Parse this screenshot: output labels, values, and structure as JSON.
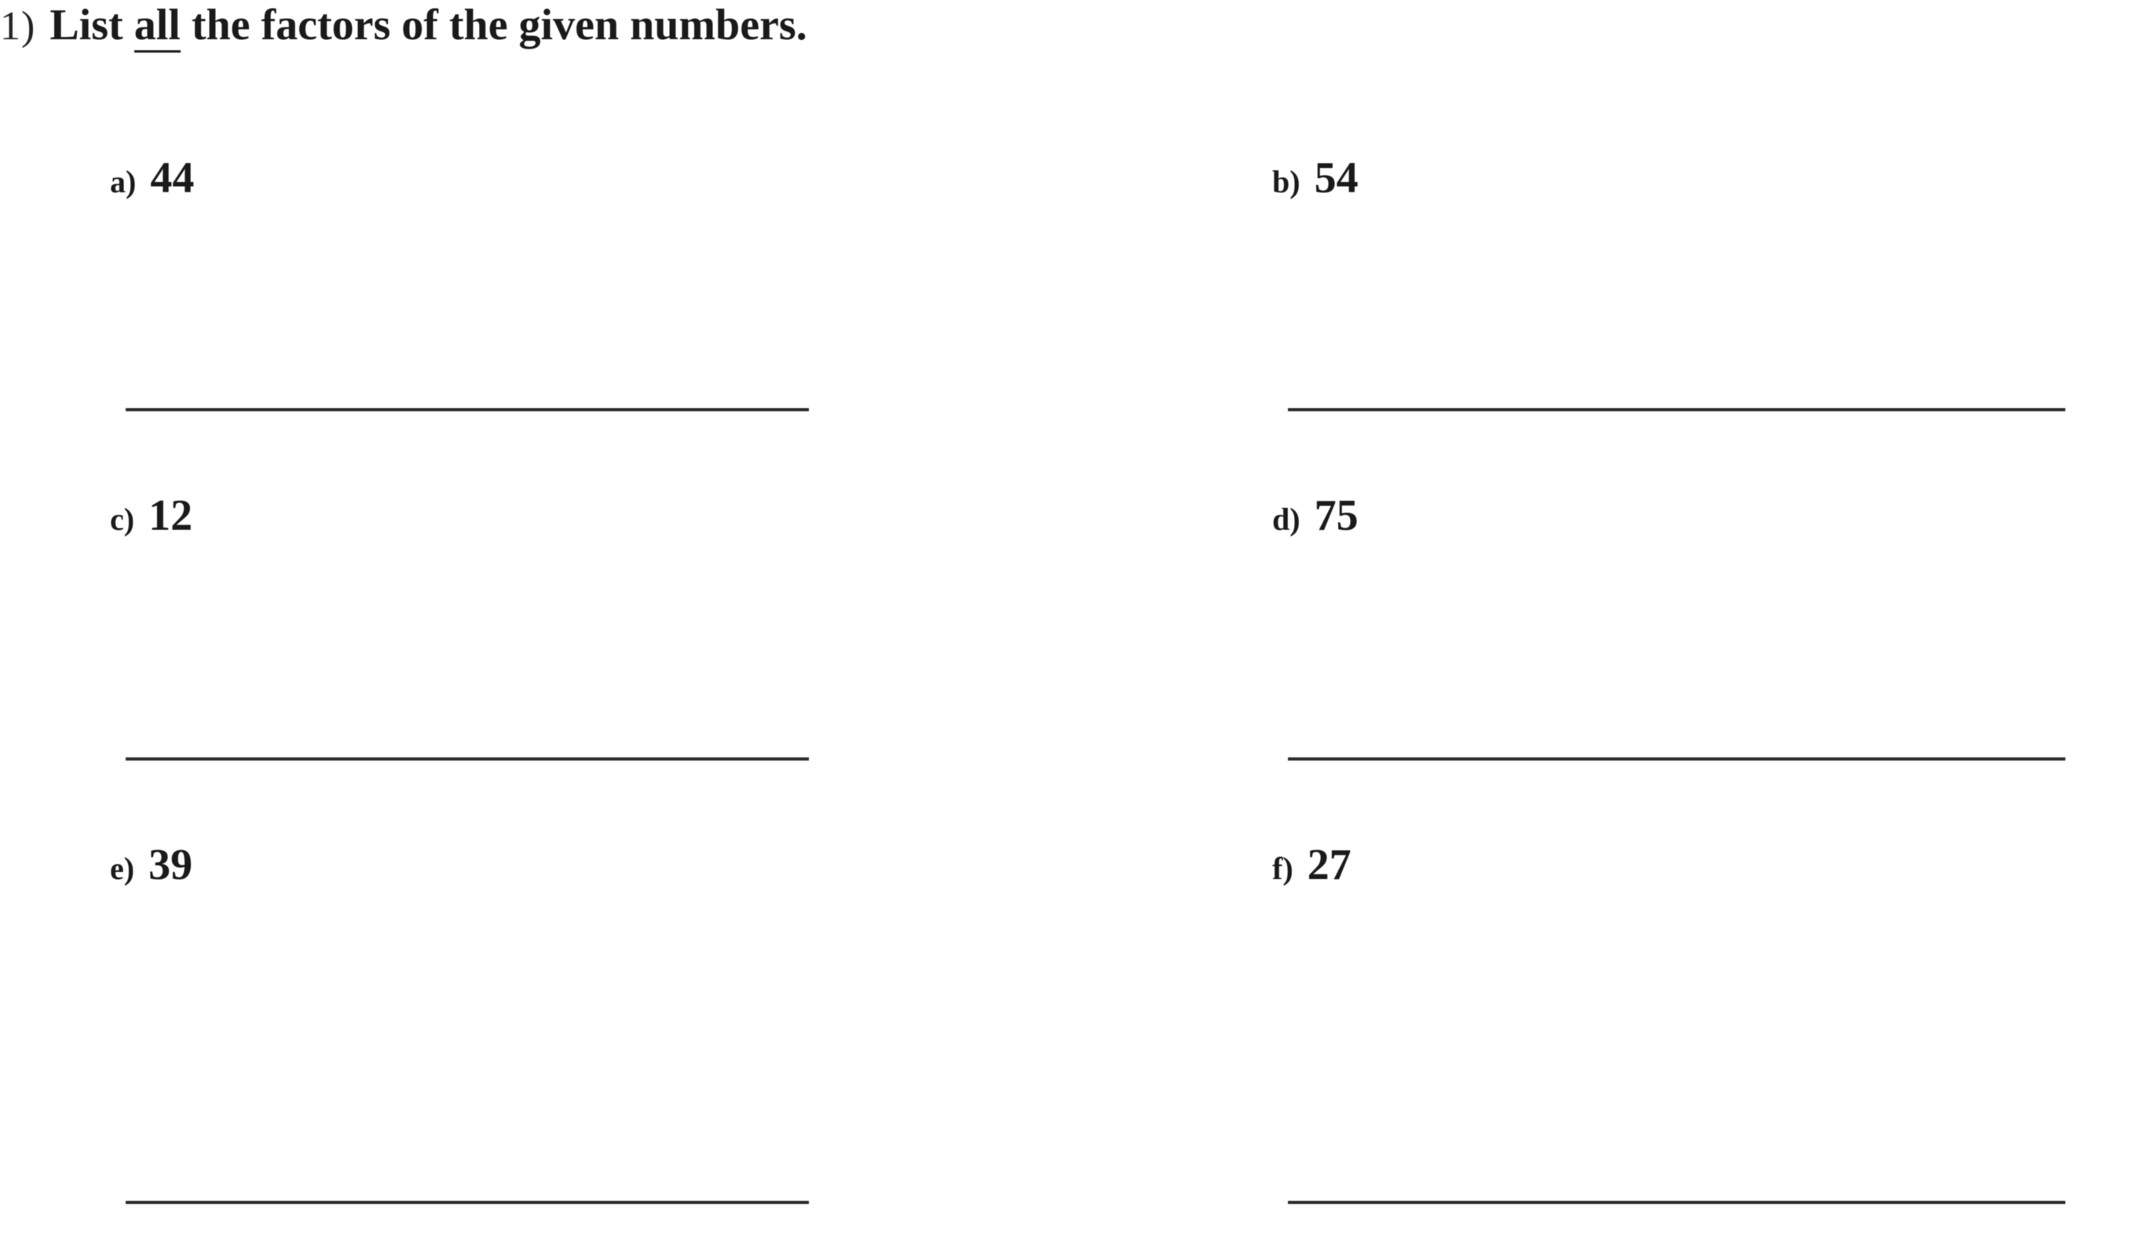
{
  "instruction": {
    "number_label": "1)",
    "prefix": "List ",
    "underlined": "all",
    "suffix": " the factors of the given numbers."
  },
  "items": {
    "a": {
      "label": "a)",
      "number": "44"
    },
    "b": {
      "label": "b)",
      "number": "54"
    },
    "c": {
      "label": "c)",
      "number": "12"
    },
    "d": {
      "label": "d)",
      "number": "75"
    },
    "e": {
      "label": "e)",
      "number": "39"
    },
    "f": {
      "label": "f)",
      "number": "27"
    }
  },
  "style": {
    "line_color": "#2a2a2a",
    "text_color": "#1a1a1a"
  }
}
